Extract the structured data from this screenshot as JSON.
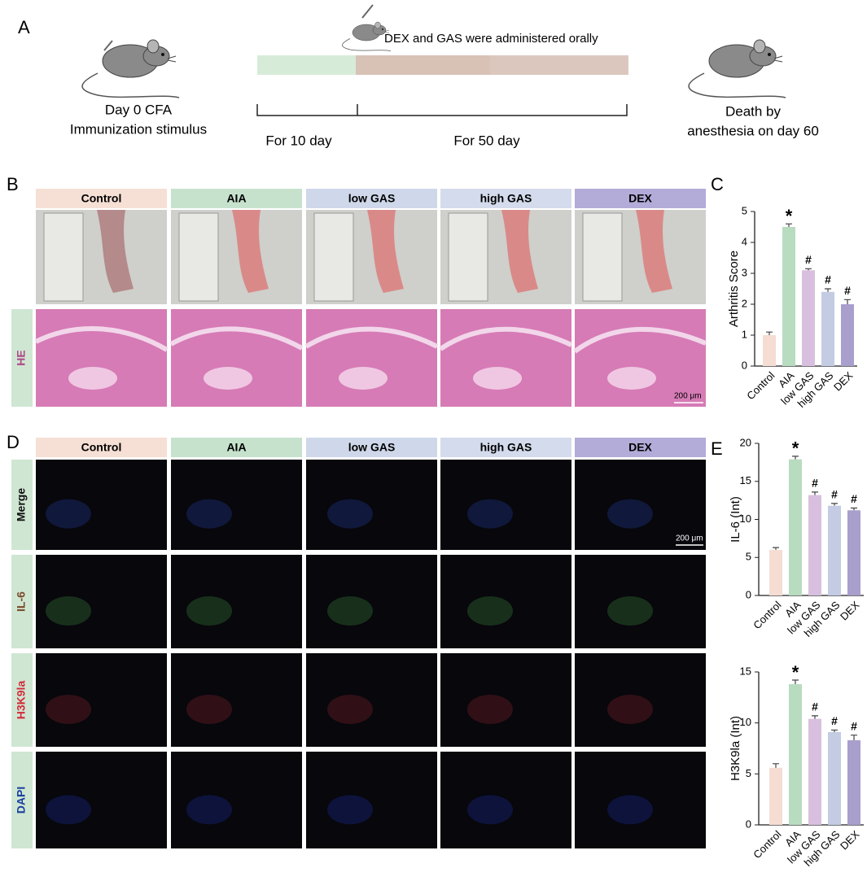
{
  "panel_labels": [
    "A",
    "B",
    "C",
    "D",
    "E"
  ],
  "timeline": {
    "treatment_note": "DEX and GAS were administered orally",
    "start_label": [
      "Day 0 CFA",
      "Immunization stimulus"
    ],
    "phase1": "For 10 day",
    "phase2": "For 50 day",
    "end_label": [
      "Death by",
      "anesthesia on day 60"
    ]
  },
  "groups": [
    {
      "name": "Control",
      "color": "#f6dfd4"
    },
    {
      "name": "AIA",
      "color": "#c6e2cd"
    },
    {
      "name": "low GAS",
      "color": "#cfd8ea"
    },
    {
      "name": "high GAS",
      "color": "#d3dbec"
    },
    {
      "name": "DEX",
      "color": "#b3abd8"
    }
  ],
  "histology": {
    "row_label": "HE",
    "row_label_color": "#b0488a",
    "scale_bar": "200 μm"
  },
  "fluorescence": {
    "rows": [
      {
        "label": "Merge",
        "color": "#111111"
      },
      {
        "label": "IL-6",
        "color": "#7a4a2a"
      },
      {
        "label": "H3K9la",
        "color": "#d42a3a"
      },
      {
        "label": "DAPI",
        "color": "#1a3fa0"
      }
    ],
    "scale_bar": "200 μm"
  },
  "chart_data": [
    {
      "type": "bar",
      "y_label": "Arthritis Score",
      "categories": [
        "Control",
        "AIA",
        "low GAS",
        "high GAS",
        "DEX"
      ],
      "values": [
        1.0,
        4.5,
        3.1,
        2.4,
        2.0
      ],
      "errors": [
        0.1,
        0.1,
        0.05,
        0.1,
        0.15
      ],
      "colors": [
        "#f5ddd3",
        "#b8dcc0",
        "#d9bfdf",
        "#c3cce3",
        "#a99fcd"
      ],
      "annotations": [
        null,
        "*",
        "#",
        "#",
        "#"
      ],
      "ylim": [
        0,
        5
      ],
      "yticks": [
        0,
        1,
        2,
        3,
        4,
        5
      ]
    },
    {
      "type": "bar",
      "y_label": "IL-6 (Int)",
      "categories": [
        "Control",
        "AIA",
        "low GAS",
        "high GAS",
        "DEX"
      ],
      "values": [
        6.0,
        17.9,
        13.2,
        11.8,
        11.2
      ],
      "errors": [
        0.3,
        0.4,
        0.4,
        0.3,
        0.3
      ],
      "colors": [
        "#f5ddd3",
        "#b8dcc0",
        "#d9bfdf",
        "#c3cce3",
        "#a99fcd"
      ],
      "annotations": [
        null,
        "*",
        "#",
        "#",
        "#"
      ],
      "ylim": [
        0,
        20
      ],
      "yticks": [
        0,
        5,
        10,
        15,
        20
      ]
    },
    {
      "type": "bar",
      "y_label": "H3K9la (Int)",
      "categories": [
        "Control",
        "AIA",
        "low GAS",
        "high GAS",
        "DEX"
      ],
      "values": [
        5.6,
        13.8,
        10.4,
        9.1,
        8.3
      ],
      "errors": [
        0.4,
        0.4,
        0.3,
        0.2,
        0.5
      ],
      "colors": [
        "#f5ddd3",
        "#b8dcc0",
        "#d9bfdf",
        "#c3cce3",
        "#a99fcd"
      ],
      "annotations": [
        null,
        "*",
        "#",
        "#",
        "#"
      ],
      "ylim": [
        0,
        15
      ],
      "yticks": [
        0,
        5,
        10,
        15
      ]
    }
  ]
}
